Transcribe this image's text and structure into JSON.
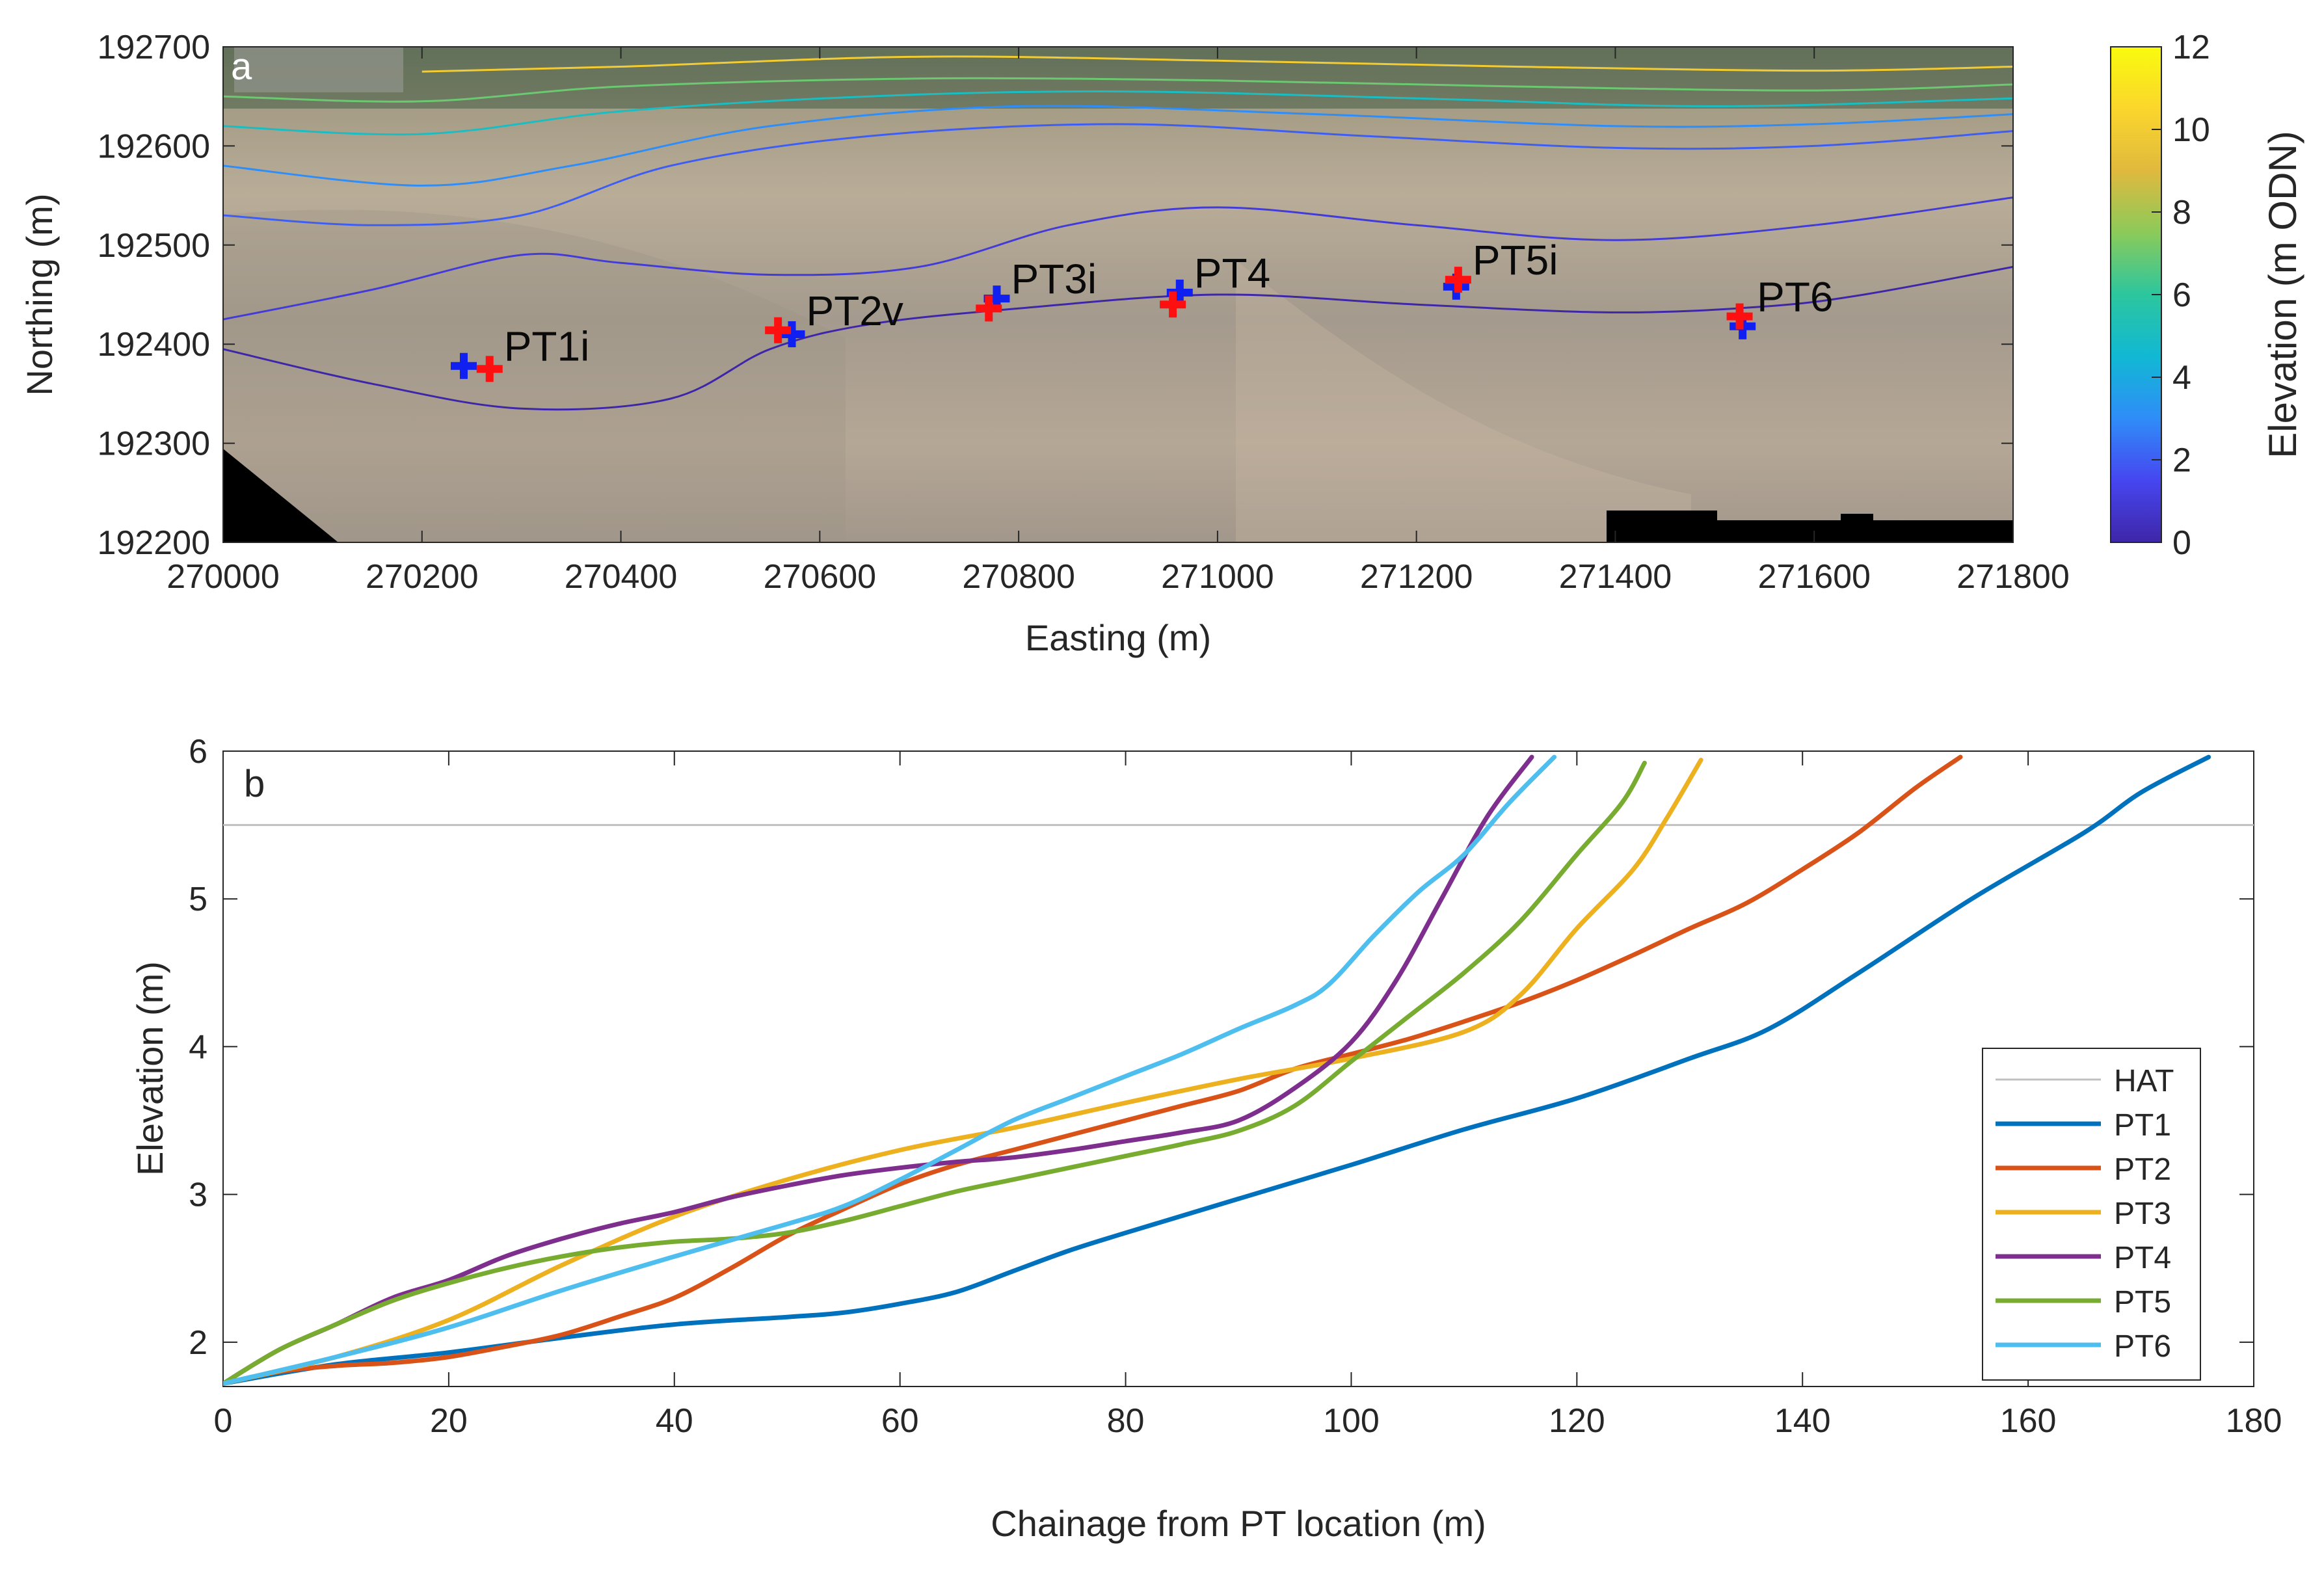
{
  "chart_data": [
    {
      "type": "map",
      "panel_label": "a",
      "xlabel": "Easting (m)",
      "ylabel": "Northing (m)",
      "xlim": [
        270000,
        271800
      ],
      "ylim": [
        192200,
        192700
      ],
      "xticks": [
        270000,
        270200,
        270400,
        270600,
        270800,
        271000,
        271200,
        271400,
        271600,
        271800
      ],
      "yticks": [
        192200,
        192300,
        192400,
        192500,
        192600,
        192700
      ],
      "colorbar": {
        "label": "Elevation (m ODN)",
        "range": [
          0,
          12
        ],
        "ticks": [
          0,
          2,
          4,
          6,
          8,
          10,
          12
        ],
        "stops": [
          "#3e26a8",
          "#4646f0",
          "#2f8df8",
          "#11b8d4",
          "#2cc69e",
          "#8bca5a",
          "#e0b93e",
          "#fbd62c",
          "#f9fb0e"
        ]
      },
      "markers": [
        {
          "label": "PT1i",
          "red": [
            270268,
            192375
          ],
          "blue": [
            270242,
            192378
          ]
        },
        {
          "label": "PT2v",
          "red": [
            270558,
            192414
          ],
          "blue": [
            270572,
            192410
          ]
        },
        {
          "label": "PT3i",
          "red": [
            270770,
            192436
          ],
          "blue": [
            270778,
            192446
          ]
        },
        {
          "label": "PT4",
          "red": [
            270955,
            192440
          ],
          "blue": [
            270962,
            192452
          ]
        },
        {
          "label": "PT5i",
          "red": [
            271242,
            192465
          ],
          "blue": [
            271240,
            192458
          ]
        },
        {
          "label": "PT6",
          "red": [
            271525,
            192428
          ],
          "blue": [
            271528,
            192418
          ]
        }
      ],
      "contours": [
        {
          "elevation": 0,
          "points": [
            [
              270000,
              192395
            ],
            [
              270150,
              192360
            ],
            [
              270300,
              192335
            ],
            [
              270450,
              192345
            ],
            [
              270550,
              192395
            ],
            [
              270650,
              192420
            ],
            [
              270800,
              192436
            ],
            [
              271000,
              192450
            ],
            [
              271200,
              192440
            ],
            [
              271400,
              192432
            ],
            [
              271550,
              192438
            ],
            [
              271650,
              192450
            ],
            [
              271800,
              192478
            ]
          ]
        },
        {
          "elevation": 1,
          "points": [
            [
              270000,
              192425
            ],
            [
              270150,
              192455
            ],
            [
              270300,
              192490
            ],
            [
              270400,
              192482
            ],
            [
              270550,
              192470
            ],
            [
              270700,
              192478
            ],
            [
              270850,
              192520
            ],
            [
              271000,
              192538
            ],
            [
              271200,
              192520
            ],
            [
              271400,
              192505
            ],
            [
              271600,
              192520
            ],
            [
              271800,
              192548
            ]
          ]
        },
        {
          "elevation": 2,
          "points": [
            [
              270000,
              192530
            ],
            [
              270150,
              192520
            ],
            [
              270300,
              192530
            ],
            [
              270450,
              192580
            ],
            [
              270650,
              192610
            ],
            [
              270900,
              192622
            ],
            [
              271150,
              192610
            ],
            [
              271400,
              192598
            ],
            [
              271600,
              192600
            ],
            [
              271800,
              192615
            ]
          ]
        },
        {
          "elevation": 3,
          "points": [
            [
              270000,
              192580
            ],
            [
              270200,
              192560
            ],
            [
              270350,
              192580
            ],
            [
              270550,
              192620
            ],
            [
              270800,
              192640
            ],
            [
              271100,
              192632
            ],
            [
              271400,
              192620
            ],
            [
              271600,
              192622
            ],
            [
              271800,
              192632
            ]
          ]
        },
        {
          "elevation": 5,
          "points": [
            [
              270000,
              192620
            ],
            [
              270200,
              192612
            ],
            [
              270400,
              192635
            ],
            [
              270650,
              192650
            ],
            [
              270900,
              192655
            ],
            [
              271200,
              192648
            ],
            [
              271500,
              192640
            ],
            [
              271800,
              192648
            ]
          ]
        },
        {
          "elevation": 7,
          "points": [
            [
              270000,
              192650
            ],
            [
              270200,
              192645
            ],
            [
              270400,
              192660
            ],
            [
              270700,
              192668
            ],
            [
              271000,
              192666
            ],
            [
              271300,
              192660
            ],
            [
              271600,
              192656
            ],
            [
              271800,
              192662
            ]
          ]
        },
        {
          "elevation": 10,
          "points": [
            [
              270200,
              192675
            ],
            [
              270400,
              192680
            ],
            [
              270700,
              192690
            ],
            [
              271000,
              192686
            ],
            [
              271300,
              192680
            ],
            [
              271600,
              192676
            ],
            [
              271800,
              192680
            ]
          ]
        }
      ]
    },
    {
      "type": "line",
      "panel_label": "b",
      "xlabel": "Chainage from PT location (m)",
      "ylabel": "Elevation (m)",
      "xlim": [
        0,
        180
      ],
      "ylim": [
        1.7,
        6
      ],
      "xticks": [
        0,
        20,
        40,
        60,
        80,
        100,
        120,
        140,
        160,
        180
      ],
      "yticks": [
        2,
        3,
        4,
        5,
        6
      ],
      "hat": {
        "name": "HAT",
        "value": 5.5,
        "color": "#c0c0c0"
      },
      "series": [
        {
          "name": "PT1",
          "color": "#0072bd",
          "points": [
            [
              0,
              1.72
            ],
            [
              10,
              1.85
            ],
            [
              20,
              1.93
            ],
            [
              30,
              2.03
            ],
            [
              40,
              2.12
            ],
            [
              50,
              2.17
            ],
            [
              55,
              2.2
            ],
            [
              60,
              2.26
            ],
            [
              65,
              2.34
            ],
            [
              70,
              2.48
            ],
            [
              75,
              2.62
            ],
            [
              80,
              2.74
            ],
            [
              90,
              2.97
            ],
            [
              100,
              3.2
            ],
            [
              110,
              3.44
            ],
            [
              120,
              3.65
            ],
            [
              130,
              3.92
            ],
            [
              137,
              4.12
            ],
            [
              145,
              4.5
            ],
            [
              155,
              5.0
            ],
            [
              165,
              5.45
            ],
            [
              170,
              5.72
            ],
            [
              176,
              5.96
            ]
          ]
        },
        {
          "name": "PT2",
          "color": "#d95319",
          "points": [
            [
              0,
              1.72
            ],
            [
              5,
              1.8
            ],
            [
              10,
              1.84
            ],
            [
              15,
              1.86
            ],
            [
              20,
              1.9
            ],
            [
              25,
              1.97
            ],
            [
              30,
              2.05
            ],
            [
              35,
              2.17
            ],
            [
              40,
              2.3
            ],
            [
              45,
              2.5
            ],
            [
              50,
              2.72
            ],
            [
              55,
              2.9
            ],
            [
              60,
              3.07
            ],
            [
              65,
              3.2
            ],
            [
              70,
              3.3
            ],
            [
              75,
              3.4
            ],
            [
              80,
              3.5
            ],
            [
              85,
              3.6
            ],
            [
              90,
              3.7
            ],
            [
              95,
              3.85
            ],
            [
              100,
              3.95
            ],
            [
              105,
              4.05
            ],
            [
              110,
              4.17
            ],
            [
              115,
              4.3
            ],
            [
              120,
              4.45
            ],
            [
              125,
              4.62
            ],
            [
              130,
              4.8
            ],
            [
              135,
              4.97
            ],
            [
              140,
              5.2
            ],
            [
              145,
              5.45
            ],
            [
              150,
              5.75
            ],
            [
              154,
              5.96
            ]
          ]
        },
        {
          "name": "PT3",
          "color": "#edb120",
          "points": [
            [
              0,
              1.72
            ],
            [
              10,
              1.9
            ],
            [
              20,
              2.15
            ],
            [
              30,
              2.52
            ],
            [
              40,
              2.85
            ],
            [
              50,
              3.1
            ],
            [
              60,
              3.3
            ],
            [
              70,
              3.45
            ],
            [
              80,
              3.62
            ],
            [
              90,
              3.78
            ],
            [
              100,
              3.92
            ],
            [
              110,
              4.1
            ],
            [
              115,
              4.35
            ],
            [
              120,
              4.8
            ],
            [
              125,
              5.2
            ],
            [
              128,
              5.55
            ],
            [
              131,
              5.94
            ]
          ]
        },
        {
          "name": "PT4",
          "color": "#7e2f8e",
          "points": [
            [
              0,
              1.72
            ],
            [
              5,
              1.95
            ],
            [
              10,
              2.12
            ],
            [
              15,
              2.3
            ],
            [
              20,
              2.42
            ],
            [
              25,
              2.58
            ],
            [
              30,
              2.7
            ],
            [
              35,
              2.8
            ],
            [
              40,
              2.88
            ],
            [
              45,
              2.98
            ],
            [
              50,
              3.06
            ],
            [
              55,
              3.13
            ],
            [
              60,
              3.18
            ],
            [
              65,
              3.22
            ],
            [
              70,
              3.25
            ],
            [
              75,
              3.3
            ],
            [
              80,
              3.36
            ],
            [
              85,
              3.42
            ],
            [
              90,
              3.5
            ],
            [
              95,
              3.72
            ],
            [
              100,
              4.03
            ],
            [
              104,
              4.45
            ],
            [
              108,
              5.0
            ],
            [
              112,
              5.55
            ],
            [
              116,
              5.96
            ]
          ]
        },
        {
          "name": "PT5",
          "color": "#77ac30",
          "points": [
            [
              0,
              1.72
            ],
            [
              5,
              1.95
            ],
            [
              10,
              2.12
            ],
            [
              15,
              2.28
            ],
            [
              20,
              2.4
            ],
            [
              25,
              2.5
            ],
            [
              30,
              2.58
            ],
            [
              35,
              2.64
            ],
            [
              40,
              2.68
            ],
            [
              45,
              2.7
            ],
            [
              50,
              2.74
            ],
            [
              55,
              2.82
            ],
            [
              60,
              2.92
            ],
            [
              65,
              3.02
            ],
            [
              70,
              3.1
            ],
            [
              75,
              3.18
            ],
            [
              80,
              3.26
            ],
            [
              85,
              3.34
            ],
            [
              90,
              3.43
            ],
            [
              95,
              3.6
            ],
            [
              100,
              3.9
            ],
            [
              105,
              4.2
            ],
            [
              110,
              4.5
            ],
            [
              115,
              4.85
            ],
            [
              120,
              5.3
            ],
            [
              124,
              5.65
            ],
            [
              126,
              5.92
            ]
          ]
        },
        {
          "name": "PT6",
          "color": "#4dbeee",
          "points": [
            [
              0,
              1.72
            ],
            [
              10,
              1.9
            ],
            [
              20,
              2.1
            ],
            [
              30,
              2.35
            ],
            [
              40,
              2.58
            ],
            [
              50,
              2.8
            ],
            [
              55,
              2.92
            ],
            [
              60,
              3.1
            ],
            [
              65,
              3.3
            ],
            [
              70,
              3.5
            ],
            [
              75,
              3.65
            ],
            [
              80,
              3.8
            ],
            [
              85,
              3.95
            ],
            [
              90,
              4.12
            ],
            [
              95,
              4.28
            ],
            [
              98,
              4.42
            ],
            [
              102,
              4.75
            ],
            [
              106,
              5.05
            ],
            [
              110,
              5.3
            ],
            [
              114,
              5.65
            ],
            [
              118,
              5.96
            ]
          ]
        }
      ]
    }
  ]
}
